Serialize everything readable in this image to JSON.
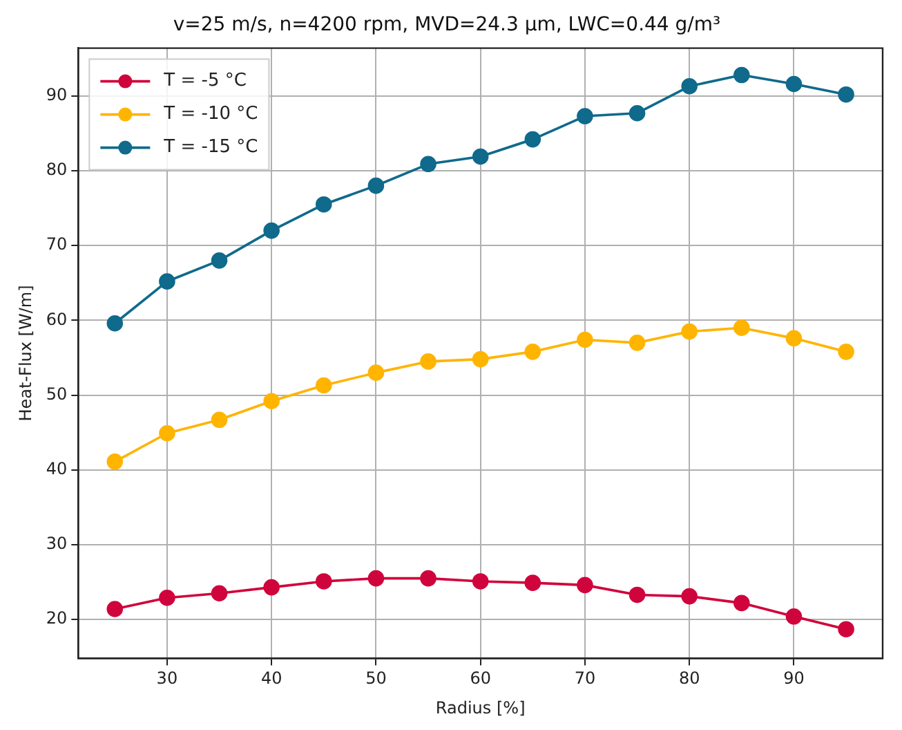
{
  "chart_data": {
    "type": "line",
    "title": "v=25 m/s, n=4200 rpm, MVD=24.3 µm, LWC=0.44 g/m³",
    "xlabel": "Radius [%]",
    "ylabel": "Heat-Flux [W/m]",
    "x": [
      25,
      30,
      35,
      40,
      45,
      50,
      55,
      60,
      65,
      70,
      75,
      80,
      85,
      90,
      95
    ],
    "series": [
      {
        "name": "T = -5 °C",
        "color": "#d0043c",
        "values": [
          21.4,
          22.9,
          23.5,
          24.3,
          25.1,
          25.5,
          25.5,
          25.1,
          24.9,
          24.6,
          23.3,
          23.1,
          22.2,
          20.4,
          18.7
        ]
      },
      {
        "name": "T = -10 °C",
        "color": "#ffb400",
        "values": [
          41.1,
          44.9,
          46.7,
          49.2,
          51.3,
          53.0,
          54.5,
          54.8,
          55.8,
          57.4,
          57.0,
          58.5,
          59.0,
          57.6,
          55.8
        ]
      },
      {
        "name": "T = -15 °C",
        "color": "#0f6a8c",
        "values": [
          59.6,
          65.2,
          68.0,
          72.0,
          75.5,
          78.0,
          80.9,
          81.9,
          84.2,
          87.3,
          87.7,
          91.3,
          92.8,
          91.6,
          90.2
        ]
      }
    ],
    "xlim": [
      21.5,
      98.5
    ],
    "xticks": [
      30,
      40,
      50,
      60,
      70,
      80,
      90
    ],
    "ylim": [
      14.8,
      96.4
    ],
    "yticks": [
      20,
      30,
      40,
      50,
      60,
      70,
      80,
      90
    ],
    "grid": true,
    "legend": "top left",
    "marker": "circle",
    "line_style": "solid"
  }
}
